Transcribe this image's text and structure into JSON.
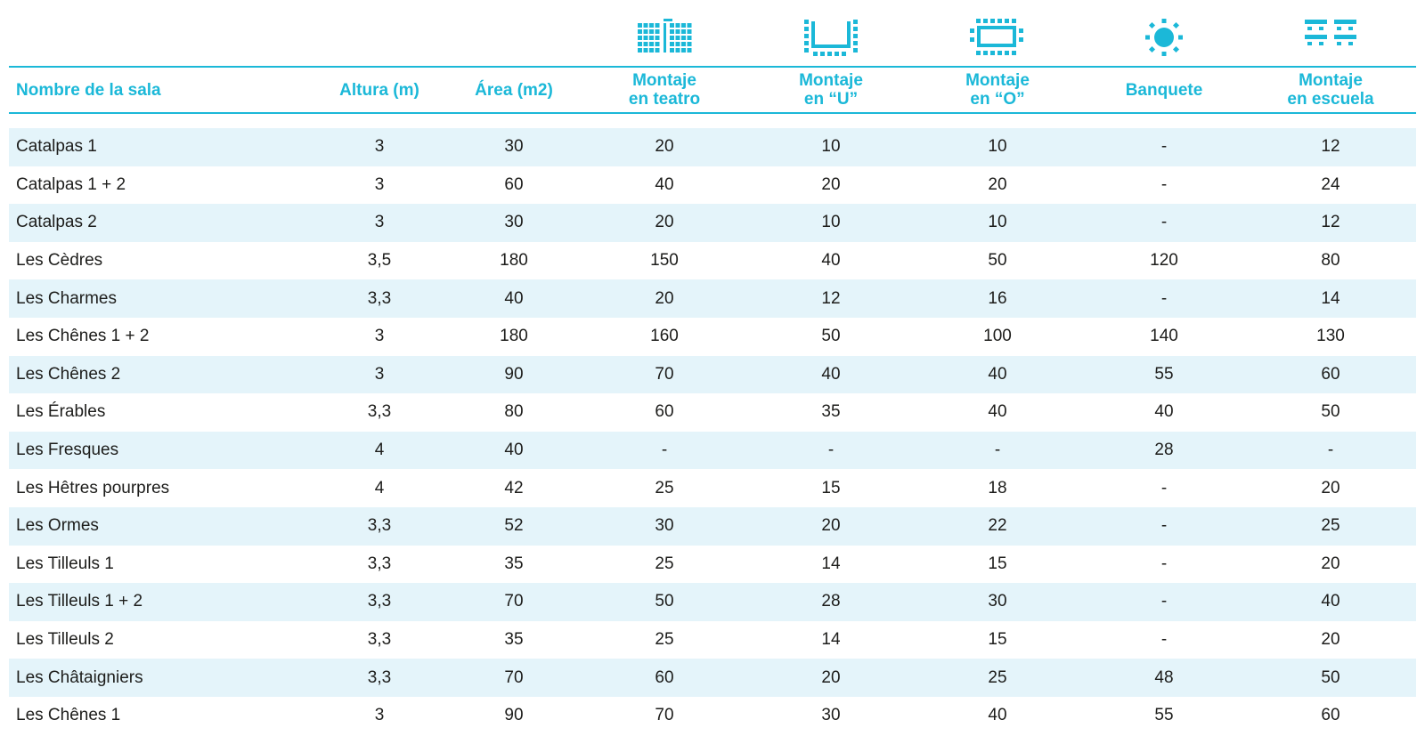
{
  "columns": {
    "name": "Nombre de la sala",
    "height": "Altura (m)",
    "area": "Área (m2)",
    "theatre_1": "Montaje",
    "theatre_2": "en teatro",
    "u_1": "Montaje",
    "u_2": "en “U”",
    "o_1": "Montaje",
    "o_2": "en “O”",
    "banquet": "Banquete",
    "school_1": "Montaje",
    "school_2": "en escuela"
  },
  "icons": [
    "theatre-layout-icon",
    "u-shape-layout-icon",
    "o-shape-layout-icon",
    "banquet-layout-icon",
    "classroom-layout-icon"
  ],
  "accent_color": "#1bb8d8",
  "row_shade_color": "#e4f4fa",
  "rows": [
    [
      "Catalpas 1",
      "3",
      "30",
      "20",
      "10",
      "10",
      "-",
      "12"
    ],
    [
      "Catalpas 1 + 2",
      "3",
      "60",
      "40",
      "20",
      "20",
      "-",
      "24"
    ],
    [
      "Catalpas 2",
      "3",
      "30",
      "20",
      "10",
      "10",
      "-",
      "12"
    ],
    [
      "Les Cèdres",
      "3,5",
      "180",
      "150",
      "40",
      "50",
      "120",
      "80"
    ],
    [
      "Les Charmes",
      "3,3",
      "40",
      "20",
      "12",
      "16",
      "-",
      "14"
    ],
    [
      "Les Chênes 1 + 2",
      "3",
      "180",
      "160",
      "50",
      "100",
      "140",
      "130"
    ],
    [
      "Les Chênes 2",
      "3",
      "90",
      "70",
      "40",
      "40",
      "55",
      "60"
    ],
    [
      "Les Érables",
      "3,3",
      "80",
      "60",
      "35",
      "40",
      "40",
      "50"
    ],
    [
      "Les Fresques",
      "4",
      "40",
      "-",
      "-",
      "-",
      "28",
      "-"
    ],
    [
      "Les Hêtres pourpres",
      "4",
      "42",
      "25",
      "15",
      "18",
      "-",
      "20"
    ],
    [
      "Les Ormes",
      "3,3",
      "52",
      "30",
      "20",
      "22",
      "-",
      "25"
    ],
    [
      "Les Tilleuls 1",
      "3,3",
      "35",
      "25",
      "14",
      "15",
      "-",
      "20"
    ],
    [
      "Les Tilleuls 1 + 2",
      "3,3",
      "70",
      "50",
      "28",
      "30",
      "-",
      "40"
    ],
    [
      "Les Tilleuls 2",
      "3,3",
      "35",
      "25",
      "14",
      "15",
      "-",
      "20"
    ],
    [
      "Les Châtaigniers",
      "3,3",
      "70",
      "60",
      "20",
      "25",
      "48",
      "50"
    ],
    [
      "Les Chênes 1",
      "3",
      "90",
      "70",
      "30",
      "40",
      "55",
      "60"
    ]
  ]
}
